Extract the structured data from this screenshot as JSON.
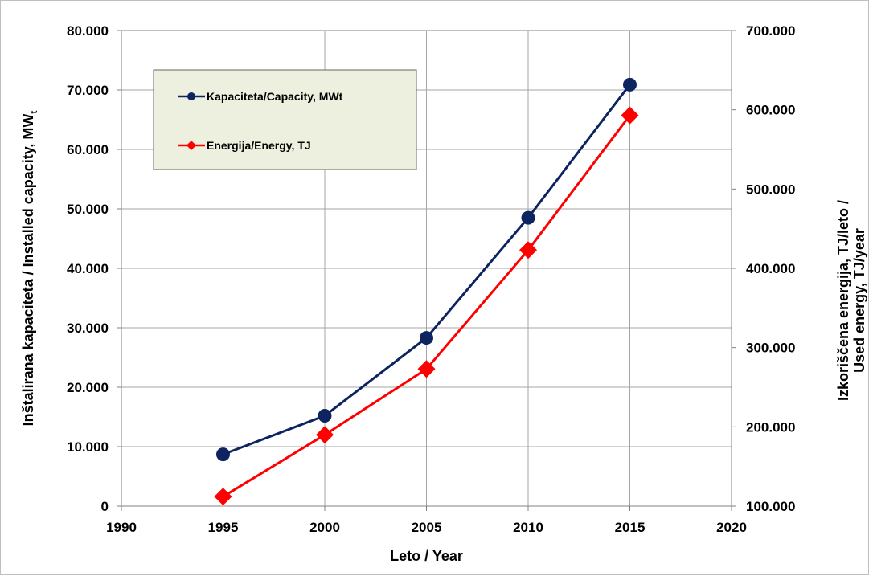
{
  "chart_data": {
    "type": "line",
    "xlabel": "Leto / Year",
    "ylabel_left": "Inštalirana kapaciteta / Installed capacity, MW",
    "ylabel_left_subscript": "t",
    "ylabel_right_line1": "Izkoriščena energija, TJ/leto /",
    "ylabel_right_line2": "Used energy, TJ/year",
    "xlim": [
      1990,
      2020
    ],
    "ylim_left": [
      0,
      80000
    ],
    "ylim_right": [
      100000,
      700000
    ],
    "x_ticks": [
      "1990",
      "1995",
      "2000",
      "2005",
      "2010",
      "2015",
      "2020"
    ],
    "y_left_ticks": [
      "0",
      "10.000",
      "20.000",
      "30.000",
      "40.000",
      "50.000",
      "60.000",
      "70.000",
      "80.000"
    ],
    "y_right_ticks": [
      "100.000",
      "200.000",
      "300.000",
      "400.000",
      "500.000",
      "600.000",
      "700.000"
    ],
    "grid": true,
    "legend_placement": "top-left",
    "series": [
      {
        "name": "Kapaciteta/Capacity, MWt",
        "axis": "left",
        "color": "#0d2460",
        "marker": "circle",
        "x": [
          1995,
          2000,
          2005,
          2010,
          2015
        ],
        "values": [
          8700,
          15200,
          28300,
          48500,
          70900
        ]
      },
      {
        "name": "Energija/Energy, TJ",
        "axis": "right",
        "color": "#ff0000",
        "marker": "diamond",
        "x": [
          1995,
          2000,
          2005,
          2010,
          2015
        ],
        "values": [
          112000,
          190000,
          273000,
          423000,
          593000
        ]
      }
    ]
  }
}
